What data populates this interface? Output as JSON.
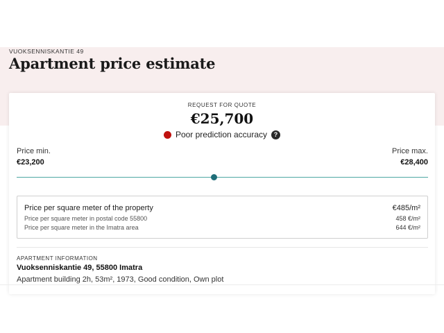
{
  "header": {
    "address_kicker": "VUOKSENNISKANTIE 49",
    "title": "Apartment price estimate"
  },
  "quote": {
    "label": "REQUEST FOR QUOTE",
    "value": "€25,700",
    "accuracy_text": "Poor prediction accuracy",
    "accuracy_color": "#c0120f",
    "help_icon": "?"
  },
  "range": {
    "min_label": "Price min.",
    "min_value": "€23,200",
    "max_label": "Price max.",
    "max_value": "€28,400",
    "estimate_position": 0.48,
    "track_color": "#4da7a3",
    "marker_color": "#1f6e79"
  },
  "sqm": {
    "property_label": "Price per square meter of the property",
    "property_value": "€485/m²",
    "postal_label": "Price per square meter in postal code 55800",
    "postal_value": "458 €/m²",
    "area_label": "Price per square meter in the Imatra area",
    "area_value": "644 €/m²"
  },
  "apartment": {
    "kicker": "APARTMENT INFORMATION",
    "address": "Vuoksenniskantie 49, 55800 Imatra",
    "details": "Apartment building 2h, 53m², 1973, Good condition, Own plot"
  }
}
